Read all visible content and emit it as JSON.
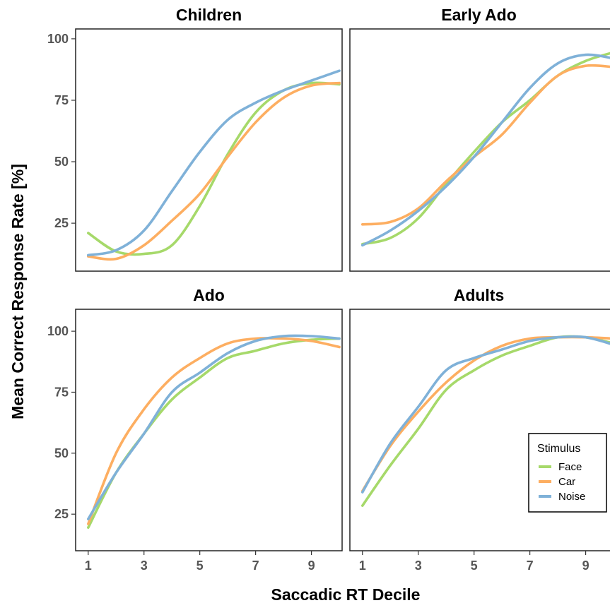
{
  "chart_data": {
    "type": "line",
    "xlabel": "Saccadic RT Decile",
    "ylabel": "Mean Correct Response Rate [%]",
    "x": [
      1,
      2,
      3,
      4,
      5,
      6,
      7,
      8,
      9,
      10
    ],
    "x_ticks": [
      1,
      3,
      5,
      7,
      9
    ],
    "y_ticks": [
      25,
      50,
      75,
      100
    ],
    "xlim": [
      0.55,
      10.1
    ],
    "legend": {
      "title": "Stimulus",
      "placement": "bottom-right"
    },
    "colors": {
      "Face": "#a6d96a",
      "Car": "#fdae61",
      "Noise": "#7fb1d8"
    },
    "panels": [
      {
        "title": "Children",
        "ylim": [
          5.5,
          104
        ],
        "series": [
          {
            "name": "Face",
            "values": [
              21,
              13.5,
              12.5,
              16,
              32,
              53,
              70,
              79,
              82,
              81.5
            ]
          },
          {
            "name": "Car",
            "values": [
              11.5,
              10.5,
              16,
              26,
              37,
              52,
              66,
              76,
              81,
              82
            ]
          },
          {
            "name": "Noise",
            "values": [
              12,
              14,
              22,
              38,
              54,
              67,
              74,
              79,
              83,
              87
            ]
          }
        ]
      },
      {
        "title": "Early Ado",
        "ylim": [
          5.5,
          104
        ],
        "series": [
          {
            "name": "Face",
            "values": [
              16.5,
              19,
              27,
              41,
              54,
              66,
              75,
              85,
              91,
              94.5
            ]
          },
          {
            "name": "Car",
            "values": [
              24.5,
              25.5,
              31,
              42,
              52,
              61,
              74,
              85,
              89,
              88.5
            ]
          },
          {
            "name": "Noise",
            "values": [
              16,
              22,
              30,
              40,
              52,
              66,
              80,
              90,
              93.5,
              92
            ]
          }
        ]
      },
      {
        "title": "Ado",
        "ylim": [
          10,
          109
        ],
        "series": [
          {
            "name": "Face",
            "values": [
              19.5,
              42,
              58,
              72,
              81,
              89,
              92,
              95,
              96.5,
              97
            ]
          },
          {
            "name": "Car",
            "values": [
              21,
              50,
              68,
              81,
              89,
              95,
              97,
              97,
              96,
              93.5
            ]
          },
          {
            "name": "Noise",
            "values": [
              23,
              42,
              58,
              75,
              83,
              91,
              96,
              98,
              98,
              97
            ]
          }
        ]
      },
      {
        "title": "Adults",
        "ylim": [
          10,
          109
        ],
        "series": [
          {
            "name": "Face",
            "values": [
              28.5,
              45,
              60,
              76,
              84,
              90,
              94,
              97.5,
              97.5,
              95
            ]
          },
          {
            "name": "Car",
            "values": [
              34.5,
              53,
              67,
              79,
              88,
              94,
              97,
              97.5,
              97.5,
              97
            ]
          },
          {
            "name": "Noise",
            "values": [
              34,
              54,
              69,
              84,
              89,
              92.5,
              96,
              97.5,
              97.5,
              94.5
            ]
          }
        ]
      }
    ]
  }
}
